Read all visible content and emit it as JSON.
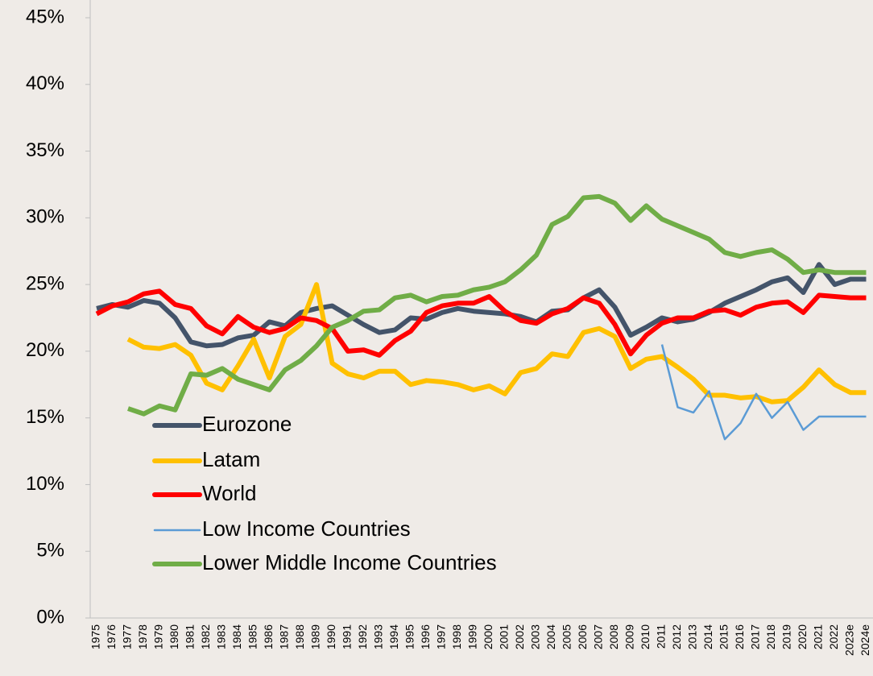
{
  "chart_data": {
    "type": "line",
    "categories": [
      "1975",
      "1976",
      "1977",
      "1978",
      "1979",
      "1980",
      "1981",
      "1982",
      "1983",
      "1984",
      "1985",
      "1986",
      "1987",
      "1988",
      "1989",
      "1990",
      "1991",
      "1992",
      "1993",
      "1994",
      "1995",
      "1996",
      "1997",
      "1998",
      "1999",
      "2000",
      "2001",
      "2002",
      "2003",
      "2004",
      "2005",
      "2006",
      "2007",
      "2008",
      "2009",
      "2010",
      "2011",
      "2012",
      "2013",
      "2014",
      "2015",
      "2016",
      "2017",
      "2018",
      "2019",
      "2020",
      "2021",
      "2022",
      "2023e",
      "2024e"
    ],
    "series": [
      {
        "name": "Eurozone",
        "color": "#44546a",
        "line_width": 6,
        "values": [
          23.2,
          23.5,
          23.3,
          23.8,
          23.6,
          22.5,
          20.7,
          20.4,
          20.5,
          21.0,
          21.2,
          22.2,
          21.9,
          22.9,
          23.2,
          23.4,
          22.7,
          22.0,
          21.4,
          21.6,
          22.5,
          22.4,
          22.9,
          23.2,
          23.0,
          22.9,
          22.8,
          22.6,
          22.2,
          23.0,
          23.1,
          24.0,
          24.6,
          23.3,
          21.2,
          21.8,
          22.5,
          22.2,
          22.4,
          22.9,
          23.6,
          24.1,
          24.6,
          25.2,
          25.5,
          24.4,
          26.5,
          25.0,
          25.4,
          25.4
        ]
      },
      {
        "name": "Latam",
        "color": "#ffc000",
        "line_width": 6,
        "values": [
          null,
          null,
          20.9,
          20.3,
          20.2,
          20.5,
          19.7,
          17.6,
          17.1,
          18.9,
          20.9,
          18.0,
          21.1,
          22.0,
          25.0,
          19.1,
          18.3,
          18.0,
          18.5,
          18.5,
          17.5,
          17.8,
          17.7,
          17.5,
          17.1,
          17.4,
          16.8,
          18.4,
          18.7,
          19.8,
          19.6,
          21.4,
          21.7,
          21.1,
          18.7,
          19.4,
          19.6,
          18.8,
          17.9,
          16.7,
          16.7,
          16.5,
          16.6,
          16.2,
          16.3,
          17.3,
          18.6,
          17.5,
          16.9,
          16.9
        ]
      },
      {
        "name": "World",
        "color": "#ff0000",
        "line_width": 6,
        "values": [
          22.8,
          23.4,
          23.7,
          24.3,
          24.5,
          23.5,
          23.2,
          21.9,
          21.3,
          22.6,
          21.8,
          21.4,
          21.7,
          22.5,
          22.3,
          21.7,
          20.0,
          20.1,
          19.7,
          20.8,
          21.5,
          22.9,
          23.4,
          23.6,
          23.6,
          24.1,
          23.0,
          22.3,
          22.1,
          22.8,
          23.2,
          24.0,
          23.6,
          22.0,
          19.8,
          21.2,
          22.1,
          22.5,
          22.5,
          23.0,
          23.1,
          22.7,
          23.3,
          23.6,
          23.7,
          22.9,
          24.2,
          24.1,
          24.0,
          24.0
        ]
      },
      {
        "name": "Low Income Countries",
        "color": "#5b9bd5",
        "line_width": 2.5,
        "values": [
          null,
          null,
          null,
          null,
          null,
          null,
          null,
          null,
          null,
          null,
          null,
          null,
          null,
          null,
          null,
          null,
          null,
          null,
          null,
          null,
          null,
          null,
          null,
          null,
          null,
          null,
          null,
          null,
          null,
          null,
          null,
          null,
          null,
          null,
          null,
          null,
          20.5,
          15.8,
          15.4,
          17.0,
          13.4,
          14.6,
          16.8,
          15.0,
          16.2,
          14.1,
          15.1,
          15.1,
          15.1,
          15.1
        ]
      },
      {
        "name": "Lower Middle Income Countries",
        "color": "#70ad47",
        "line_width": 6,
        "values": [
          null,
          null,
          15.7,
          15.3,
          15.9,
          15.6,
          18.3,
          18.2,
          18.7,
          17.9,
          17.5,
          17.1,
          18.6,
          19.3,
          20.4,
          21.8,
          22.3,
          23.0,
          23.1,
          24.0,
          24.2,
          23.7,
          24.1,
          24.2,
          24.6,
          24.8,
          25.2,
          26.1,
          27.2,
          29.5,
          30.1,
          31.5,
          31.6,
          31.1,
          29.8,
          30.9,
          29.9,
          29.4,
          28.9,
          28.4,
          27.4,
          27.1,
          27.4,
          27.6,
          26.9,
          25.9,
          26.1,
          25.9,
          25.9,
          25.9
        ]
      }
    ],
    "ylim": [
      0,
      45
    ],
    "yticks": [
      {
        "value": 0,
        "label": "0%"
      },
      {
        "value": 5,
        "label": "5%"
      },
      {
        "value": 10,
        "label": "10%"
      },
      {
        "value": 15,
        "label": "15%"
      },
      {
        "value": 20,
        "label": "20%"
      },
      {
        "value": 25,
        "label": "25%"
      },
      {
        "value": 30,
        "label": "30%"
      },
      {
        "value": 35,
        "label": "35%"
      },
      {
        "value": 40,
        "label": "40%"
      },
      {
        "value": 45,
        "label": "45%"
      }
    ],
    "grid": false,
    "legend": "lower-left"
  }
}
